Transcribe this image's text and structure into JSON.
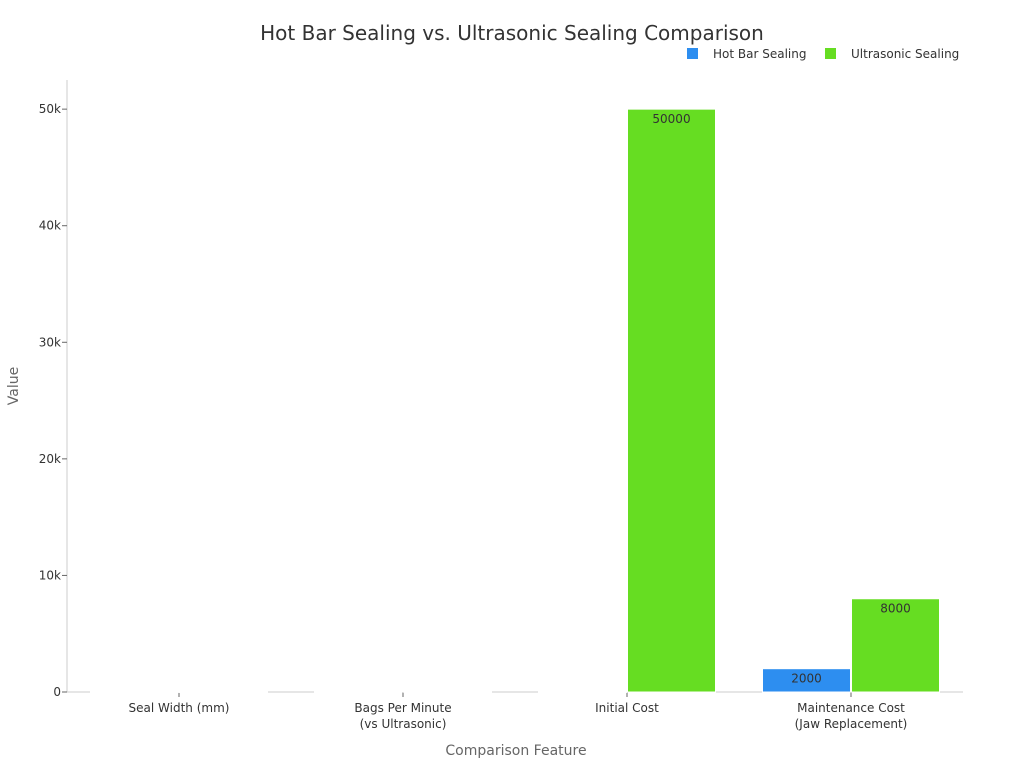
{
  "chart_data": {
    "type": "bar",
    "title": "Hot Bar Sealing vs. Ultrasonic Sealing Comparison",
    "xlabel": "Comparison Feature",
    "ylabel": "Value",
    "categories": [
      [
        "Seal Width (mm)"
      ],
      [
        "Bags Per Minute",
        "(vs Ultrasonic)"
      ],
      [
        "Initial Cost"
      ],
      [
        "Maintenance Cost",
        "(Jaw Replacement)"
      ]
    ],
    "series": [
      {
        "name": "Hot Bar Sealing",
        "color": "#2d8ef0",
        "values": [
          5,
          45,
          5,
          2000
        ],
        "data_labels": [
          null,
          null,
          null,
          "2000"
        ]
      },
      {
        "name": "Ultrasonic Sealing",
        "color": "#66dd22",
        "values": [
          2,
          30,
          50000,
          8000
        ],
        "data_labels": [
          null,
          null,
          "50000",
          "8000"
        ]
      }
    ],
    "ylim": [
      0,
      52500
    ],
    "y_ticks": [
      {
        "value": 0,
        "label": "0"
      },
      {
        "value": 10000,
        "label": "10k"
      },
      {
        "value": 20000,
        "label": "20k"
      },
      {
        "value": 30000,
        "label": "30k"
      },
      {
        "value": 40000,
        "label": "40k"
      },
      {
        "value": 50000,
        "label": "50k"
      }
    ],
    "grid": false,
    "legend_position": "top-right"
  }
}
